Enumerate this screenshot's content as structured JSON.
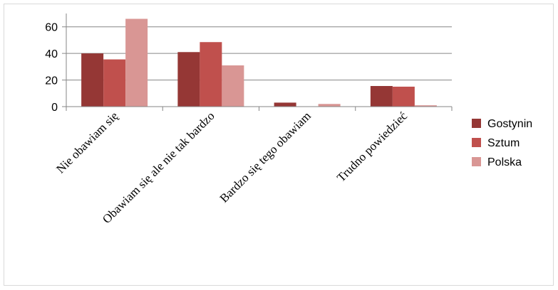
{
  "chart_data": {
    "type": "bar",
    "title": "",
    "xlabel": "",
    "ylabel": "",
    "categories": [
      "Nie obawiam się",
      "Obawiam się ale nie tak bardzo",
      "Bardzo się tego obawiam",
      "Trudno powiedzieć"
    ],
    "series": [
      {
        "name": "Gostynin",
        "color": "#953735",
        "values": [
          40,
          41,
          3,
          15.5
        ]
      },
      {
        "name": "Sztum",
        "color": "#c0504d",
        "values": [
          35.5,
          48.5,
          0,
          15
        ]
      },
      {
        "name": "Polska",
        "color": "#d99694",
        "values": [
          66,
          31,
          2,
          1
        ]
      }
    ],
    "ylim": [
      0,
      70
    ],
    "yticks": [
      0,
      20,
      40,
      60
    ],
    "grid": true,
    "legend": "right"
  }
}
